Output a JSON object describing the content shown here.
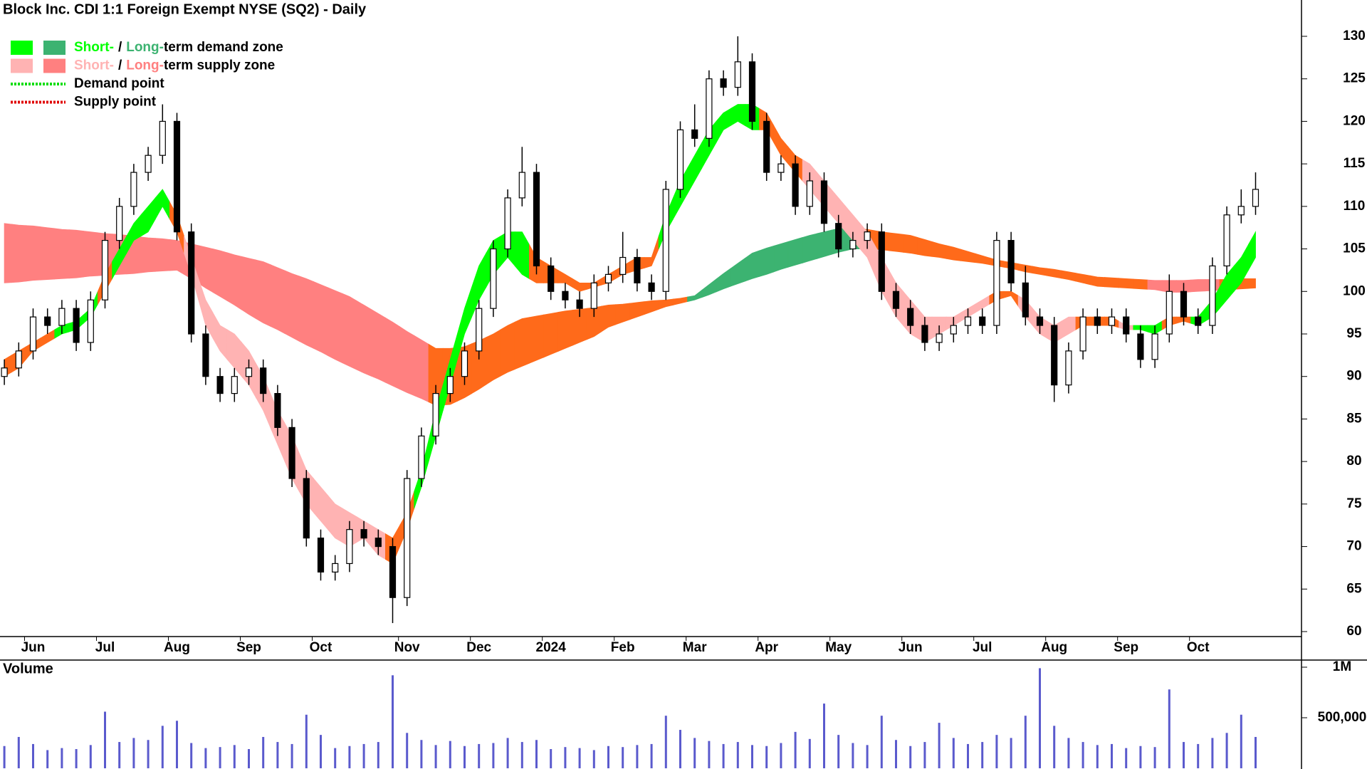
{
  "chart_data": {
    "type": "candlestick",
    "title": "Block Inc. CDI 1:1 Foreign Exempt NYSE (SQ2) - Daily",
    "categories": [
      null,
      null,
      "Jun",
      null,
      null,
      null,
      null,
      "Jul",
      null,
      null,
      null,
      null,
      "Aug",
      null,
      null,
      null,
      null,
      "Sep",
      null,
      null,
      null,
      null,
      "Oct",
      null,
      null,
      null,
      null,
      null,
      "Nov",
      null,
      null,
      null,
      null,
      "Dec",
      null,
      null,
      null,
      null,
      "2024",
      null,
      null,
      null,
      null,
      "Feb",
      null,
      null,
      null,
      null,
      "Mar",
      null,
      null,
      null,
      null,
      "Apr",
      null,
      null,
      null,
      null,
      "May",
      null,
      null,
      null,
      null,
      "Jun",
      null,
      null,
      null,
      null,
      "Jul",
      null,
      null,
      null,
      null,
      "Aug",
      null,
      null,
      null,
      null,
      "Sep",
      null,
      null,
      null,
      null,
      "Oct",
      null,
      null,
      null,
      null
    ],
    "open": [
      90,
      91,
      93,
      97,
      96,
      98,
      94,
      99,
      106,
      110,
      114,
      116,
      120,
      107,
      95,
      90,
      88,
      90,
      91,
      88,
      84,
      78,
      71,
      67,
      68,
      72,
      71,
      70,
      64,
      78,
      83,
      88,
      90,
      93,
      98,
      105,
      111,
      114,
      103,
      100,
      99,
      98,
      101,
      102,
      104,
      101,
      100,
      112,
      119,
      118,
      125,
      124,
      127,
      120,
      114,
      115,
      110,
      113,
      108,
      105,
      106,
      107,
      100,
      98,
      96,
      94,
      95,
      96,
      97,
      96,
      106,
      101,
      97,
      96,
      89,
      93,
      97,
      96,
      97,
      95,
      92,
      95,
      100,
      97,
      96,
      103,
      109,
      110
    ],
    "high": [
      92,
      94,
      98,
      98,
      99,
      99,
      100,
      107,
      111,
      115,
      117,
      122,
      121,
      108,
      96,
      91,
      91,
      92,
      92,
      89,
      85,
      79,
      72,
      69,
      73,
      73,
      72,
      71,
      79,
      84,
      89,
      91,
      94,
      99,
      106,
      112,
      117,
      115,
      104,
      101,
      100,
      102,
      103,
      107,
      105,
      102,
      113,
      120,
      122,
      126,
      126,
      130,
      128,
      121,
      116,
      116,
      114,
      114,
      109,
      107,
      108,
      108,
      101,
      99,
      97,
      96,
      97,
      98,
      98,
      107,
      107,
      103,
      98,
      97,
      94,
      98,
      98,
      98,
      98,
      96,
      96,
      102,
      101,
      98,
      104,
      110,
      112,
      114
    ],
    "low": [
      89,
      90,
      92,
      95,
      95,
      93,
      93,
      98,
      105,
      109,
      113,
      115,
      106,
      94,
      89,
      87,
      87,
      89,
      87,
      83,
      77,
      70,
      66,
      66,
      67,
      70,
      69,
      61,
      63,
      77,
      82,
      87,
      89,
      92,
      97,
      104,
      110,
      102,
      99,
      98,
      97,
      97,
      100,
      101,
      100,
      99,
      99,
      111,
      117,
      117,
      123,
      123,
      119,
      113,
      113,
      109,
      109,
      107,
      104,
      104,
      105,
      99,
      97,
      95,
      93,
      93,
      94,
      95,
      95,
      95,
      100,
      96,
      95,
      87,
      88,
      92,
      95,
      95,
      94,
      91,
      91,
      94,
      96,
      95,
      95,
      102,
      108,
      109
    ],
    "close": [
      91,
      93,
      97,
      96,
      98,
      94,
      99,
      106,
      110,
      114,
      116,
      120,
      107,
      95,
      90,
      88,
      90,
      91,
      88,
      84,
      78,
      71,
      67,
      68,
      72,
      71,
      70,
      64,
      78,
      83,
      88,
      90,
      93,
      98,
      105,
      111,
      114,
      103,
      100,
      99,
      98,
      101,
      102,
      104,
      101,
      100,
      112,
      119,
      118,
      125,
      124,
      127,
      120,
      114,
      115,
      110,
      113,
      108,
      105,
      106,
      107,
      100,
      98,
      96,
      94,
      95,
      96,
      97,
      96,
      106,
      101,
      97,
      96,
      89,
      93,
      97,
      96,
      97,
      95,
      92,
      95,
      100,
      97,
      96,
      103,
      109,
      110,
      112
    ],
    "up_color": "#ffffff",
    "down_color": "#000000",
    "zone_colors": {
      "sd": "#00ff00",
      "ld": "#3cb371",
      "ss": "#ffb3b3",
      "ls": "#ff8080",
      "ov": "#ff6a1a"
    },
    "short_zone": {
      "upper": [
        92,
        93,
        94,
        95,
        96,
        96.5,
        98,
        102,
        105,
        108,
        110,
        112,
        109,
        104,
        99,
        96,
        95,
        93,
        90,
        86,
        83,
        79,
        77,
        75,
        74,
        73,
        72,
        71,
        74,
        79,
        86,
        92,
        98,
        103,
        106,
        107,
        107,
        104,
        103,
        102,
        101,
        101,
        102,
        103,
        104,
        104,
        109,
        113,
        116,
        119,
        121,
        122,
        122,
        121,
        118,
        116,
        115,
        113,
        111,
        109,
        107,
        104,
        101,
        99,
        97,
        97,
        97,
        98,
        99,
        100,
        100,
        99,
        97,
        96,
        97,
        97,
        97,
        97,
        96,
        96,
        96,
        97,
        97,
        97,
        99,
        102,
        104,
        107
      ],
      "lower": [
        90,
        91,
        93,
        94,
        95,
        95.5,
        97,
        100,
        103,
        106,
        107,
        110,
        107,
        102,
        96,
        93,
        91,
        89,
        86,
        82,
        78,
        75,
        73,
        71,
        70,
        71,
        69,
        68,
        72,
        77,
        83,
        89,
        95,
        99,
        102,
        104,
        102,
        101,
        101,
        101,
        100,
        100.5,
        101,
        102,
        102.5,
        103,
        107,
        110,
        113,
        116,
        119,
        120,
        119,
        119,
        116,
        114,
        112,
        110,
        108,
        106,
        104,
        100,
        97,
        95,
        94,
        95,
        96,
        97,
        98,
        99,
        99.5,
        97,
        95,
        94,
        95,
        96,
        96,
        96,
        95.5,
        95.5,
        95,
        96,
        96.5,
        96,
        97,
        99,
        101,
        104
      ],
      "state": [
        "ov",
        "ov",
        "ov",
        "ov",
        "sd",
        "sd",
        "sd",
        "ov",
        "sd",
        "sd",
        "sd",
        "sd",
        "ov",
        "ss",
        "ss",
        "ss",
        "ss",
        "ss",
        "ss",
        "ss",
        "ss",
        "ss",
        "ss",
        "ss",
        "ss",
        "ss",
        "ss",
        "ov",
        "ov",
        "sd",
        "sd",
        "sd",
        "sd",
        "sd",
        "sd",
        "sd",
        "sd",
        "ov",
        "ov",
        "ov",
        "ov",
        "ov",
        "ov",
        "ov",
        "ov",
        "ov",
        "sd",
        "sd",
        "sd",
        "sd",
        "sd",
        "sd",
        "sd",
        "ov",
        "ov",
        "ov",
        "ss",
        "ss",
        "ss",
        "ss",
        "ss",
        "ss",
        "ss",
        "ss",
        "ss",
        "ss",
        "ss",
        "ss",
        "ss",
        "ov",
        "ov",
        "ss",
        "ss",
        "ss",
        "ss",
        "ov",
        "ov",
        "ov",
        "ss",
        "sd",
        "sd",
        "ov",
        "ov",
        "sd",
        "sd",
        "sd",
        "sd",
        "sd"
      ]
    },
    "long_zone": {
      "upper": [
        108,
        107.8,
        107.7,
        107.5,
        107.3,
        107.2,
        107,
        106.8,
        106.7,
        106.5,
        106.3,
        106.2,
        106,
        105.6,
        105.2,
        104.8,
        104.3,
        103.9,
        103.5,
        102.8,
        102.1,
        101.5,
        100.8,
        100.1,
        99.4,
        98.4,
        97.4,
        96.4,
        95.3,
        94.3,
        93.3,
        93.3,
        93.5,
        94.2,
        95,
        96,
        96.8,
        97.1,
        97.4,
        97.7,
        97.9,
        98.1,
        98.4,
        98.5,
        98.7,
        98.9,
        99,
        99.2,
        99.5,
        100.8,
        102.1,
        103.3,
        104.5,
        105.1,
        105.6,
        106.1,
        106.6,
        107,
        107.4,
        107.4,
        107.3,
        107,
        106.8,
        106.6,
        106.1,
        105.6,
        105.2,
        104.7,
        104.2,
        103.7,
        103.4,
        103.1,
        102.8,
        102.6,
        102.3,
        102,
        101.7,
        101.6,
        101.5,
        101.4,
        101.3,
        101.3,
        101.3,
        101.4,
        101.4,
        101.4,
        101.5,
        101.5
      ],
      "lower": [
        101,
        101.1,
        101.3,
        101.4,
        101.5,
        101.6,
        101.8,
        101.9,
        102,
        102.1,
        102.3,
        102.4,
        102.5,
        101.5,
        100.4,
        99.4,
        98.4,
        97.3,
        96.3,
        95.5,
        94.6,
        93.7,
        92.9,
        92,
        91.2,
        90.4,
        89.7,
        88.9,
        88.1,
        87.4,
        86.6,
        86.7,
        87.5,
        88.5,
        89.6,
        90.5,
        91.2,
        91.9,
        92.6,
        93.3,
        94,
        94.7,
        95.8,
        96.4,
        97,
        97.6,
        98.2,
        98.6,
        99,
        99.6,
        100.3,
        100.9,
        101.5,
        102,
        102.6,
        103.1,
        103.6,
        104.1,
        104.6,
        105,
        105,
        104.9,
        104.7,
        104.5,
        104.2,
        104,
        103.7,
        103.5,
        103.3,
        103,
        102.7,
        102.3,
        102,
        101.7,
        101.4,
        101,
        100.6,
        100.5,
        100.4,
        100.3,
        100.2,
        99.9,
        99.9,
        100,
        100.1,
        100.2,
        100.3,
        100.4
      ],
      "state": [
        "ls",
        "ls",
        "ls",
        "ls",
        "ls",
        "ls",
        "ls",
        "ls",
        "ls",
        "ls",
        "ls",
        "ls",
        "ls",
        "ls",
        "ls",
        "ls",
        "ls",
        "ls",
        "ls",
        "ls",
        "ls",
        "ls",
        "ls",
        "ls",
        "ls",
        "ls",
        "ls",
        "ls",
        "ls",
        "ls",
        "ov",
        "ov",
        "ov",
        "ov",
        "ov",
        "ov",
        "ov",
        "ov",
        "ov",
        "ov",
        "ov",
        "ov",
        "ov",
        "ov",
        "ov",
        "ov",
        "ov",
        "ov",
        "ld",
        "ld",
        "ld",
        "ld",
        "ld",
        "ld",
        "ld",
        "ld",
        "ld",
        "ld",
        "ld",
        "ld",
        "ov",
        "ov",
        "ov",
        "ov",
        "ov",
        "ov",
        "ov",
        "ov",
        "ov",
        "ov",
        "ov",
        "ov",
        "ov",
        "ov",
        "ov",
        "ov",
        "ov",
        "ov",
        "ov",
        "ov",
        "ls",
        "ls",
        "ls",
        "ls",
        "ls",
        "ov",
        "ov",
        "ov"
      ]
    },
    "ylim": [
      60,
      130
    ],
    "yticks": [
      60,
      65,
      70,
      75,
      80,
      85,
      90,
      95,
      100,
      105,
      110,
      115,
      120,
      125,
      130
    ],
    "legend": [
      {
        "short": "Short-",
        "sep": "/",
        "long": "Long-",
        "text": "term demand zone",
        "colors": [
          "sd",
          "ld"
        ]
      },
      {
        "short": "Short-",
        "sep": "/",
        "long": "Long-",
        "text": "term supply zone",
        "colors": [
          "ss",
          "ls"
        ]
      },
      {
        "text": "Demand point",
        "color": "#00dd00"
      },
      {
        "text": "Supply point",
        "color": "#e00000"
      }
    ],
    "volume": {
      "label": "Volume",
      "label_color": "#4b0082",
      "color": "#5a5acd",
      "values": [
        220000,
        310000,
        240000,
        180000,
        200000,
        190000,
        230000,
        560000,
        260000,
        300000,
        280000,
        420000,
        470000,
        250000,
        200000,
        210000,
        230000,
        190000,
        310000,
        260000,
        240000,
        530000,
        330000,
        200000,
        220000,
        240000,
        260000,
        920000,
        350000,
        280000,
        230000,
        270000,
        220000,
        240000,
        250000,
        300000,
        260000,
        280000,
        190000,
        210000,
        200000,
        180000,
        220000,
        210000,
        230000,
        240000,
        520000,
        380000,
        300000,
        270000,
        240000,
        260000,
        230000,
        220000,
        250000,
        360000,
        290000,
        640000,
        330000,
        250000,
        230000,
        520000,
        280000,
        220000,
        260000,
        450000,
        300000,
        240000,
        260000,
        330000,
        300000,
        520000,
        990000,
        420000,
        300000,
        260000,
        230000,
        240000,
        200000,
        220000,
        210000,
        780000,
        260000,
        240000,
        300000,
        350000,
        530000,
        310000
      ],
      "ylim": [
        0,
        1000000
      ],
      "yticks": [
        {
          "value": 500000,
          "label": "500,000"
        },
        {
          "value": 1000000,
          "label": "1M"
        }
      ]
    }
  }
}
